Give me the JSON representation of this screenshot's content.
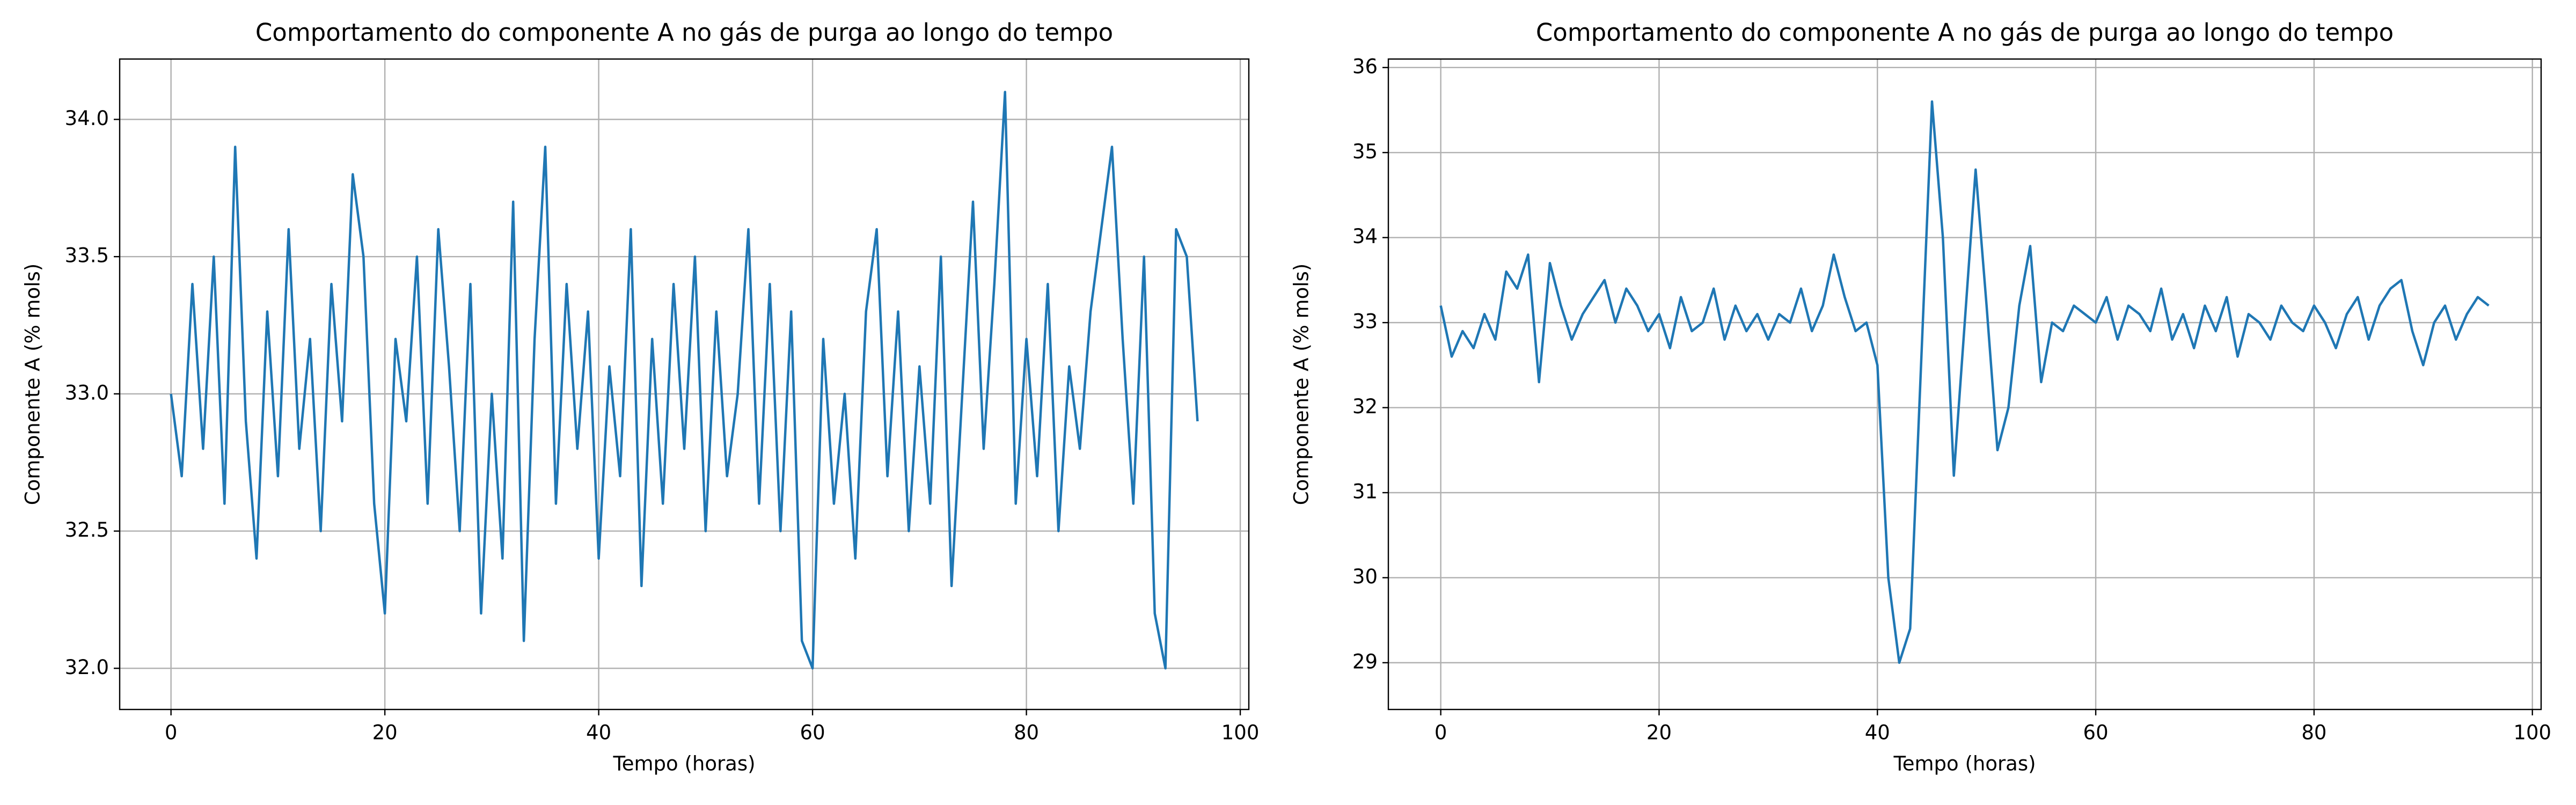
{
  "chart_data": [
    {
      "type": "line",
      "title": "Comportamento do componente A no gás de purga ao longo do tempo",
      "x_label": "Tempo (horas)",
      "y_label": "Componente A (% mols)",
      "color": "#1f77b4",
      "grid": true,
      "x": [
        0,
        1,
        2,
        3,
        4,
        5,
        6,
        7,
        8,
        9,
        10,
        11,
        12,
        13,
        14,
        15,
        16,
        17,
        18,
        19,
        20,
        21,
        22,
        23,
        24,
        25,
        26,
        27,
        28,
        29,
        30,
        31,
        32,
        33,
        34,
        35,
        36,
        37,
        38,
        39,
        40,
        41,
        42,
        43,
        44,
        45,
        46,
        47,
        48,
        49,
        50,
        51,
        52,
        53,
        54,
        55,
        56,
        57,
        58,
        59,
        60,
        61,
        62,
        63,
        64,
        65,
        66,
        67,
        68,
        69,
        70,
        71,
        72,
        73,
        74,
        75,
        76,
        77,
        78,
        79,
        80,
        81,
        82,
        83,
        84,
        85,
        86,
        87,
        88,
        89,
        90,
        91,
        92,
        93,
        94,
        95,
        96
      ],
      "values": [
        33.0,
        32.7,
        33.4,
        32.8,
        33.5,
        32.6,
        33.9,
        32.9,
        32.4,
        33.3,
        32.7,
        33.6,
        32.8,
        33.2,
        32.5,
        33.4,
        32.9,
        33.8,
        33.5,
        32.6,
        32.2,
        33.2,
        32.9,
        33.5,
        32.6,
        33.6,
        33.1,
        32.5,
        33.4,
        32.2,
        33.0,
        32.4,
        33.7,
        32.1,
        33.2,
        33.9,
        32.6,
        33.4,
        32.8,
        33.3,
        32.4,
        33.1,
        32.7,
        33.6,
        32.3,
        33.2,
        32.6,
        33.4,
        32.8,
        33.5,
        32.5,
        33.3,
        32.7,
        33.0,
        33.6,
        32.6,
        33.4,
        32.5,
        33.3,
        32.1,
        32.0,
        33.2,
        32.6,
        33.0,
        32.4,
        33.3,
        33.6,
        32.7,
        33.3,
        32.5,
        33.1,
        32.6,
        33.5,
        32.3,
        33.0,
        33.7,
        32.8,
        33.4,
        34.1,
        32.6,
        33.2,
        32.7,
        33.4,
        32.5,
        33.1,
        32.8,
        33.3,
        33.6,
        33.9,
        33.2,
        32.6,
        33.5,
        32.2,
        32.0,
        33.6,
        33.5,
        32.9
      ],
      "xlim": [
        -4.8,
        100.8
      ],
      "xticks": [
        0,
        20,
        40,
        60,
        80,
        100
      ],
      "ylim": [
        31.85,
        34.22
      ],
      "yticks": [
        {
          "value": 32,
          "label": "32.0"
        },
        32.5,
        {
          "value": 33,
          "label": "33.0"
        },
        33.5,
        {
          "value": 34,
          "label": "34.0"
        }
      ]
    },
    {
      "type": "line",
      "title": "Comportamento do componente A no gás de purga ao longo do tempo",
      "x_label": "Tempo (horas)",
      "y_label": "Componente A (% mols)",
      "color": "#1f77b4",
      "grid": true,
      "x": [
        0,
        1,
        2,
        3,
        4,
        5,
        6,
        7,
        8,
        9,
        10,
        11,
        12,
        13,
        14,
        15,
        16,
        17,
        18,
        19,
        20,
        21,
        22,
        23,
        24,
        25,
        26,
        27,
        28,
        29,
        30,
        31,
        32,
        33,
        34,
        35,
        36,
        37,
        38,
        39,
        40,
        41,
        42,
        43,
        44,
        45,
        46,
        47,
        48,
        49,
        50,
        51,
        52,
        53,
        54,
        55,
        56,
        57,
        58,
        59,
        60,
        61,
        62,
        63,
        64,
        65,
        66,
        67,
        68,
        69,
        70,
        71,
        72,
        73,
        74,
        75,
        76,
        77,
        78,
        79,
        80,
        81,
        82,
        83,
        84,
        85,
        86,
        87,
        88,
        89,
        90,
        91,
        92,
        93,
        94,
        95,
        96
      ],
      "values": [
        33.2,
        32.6,
        32.9,
        32.7,
        33.1,
        32.8,
        33.6,
        33.4,
        33.8,
        32.3,
        33.7,
        33.2,
        32.8,
        33.1,
        33.3,
        33.5,
        33.0,
        33.4,
        33.2,
        32.9,
        33.1,
        32.7,
        33.3,
        32.9,
        33.0,
        33.4,
        32.8,
        33.2,
        32.9,
        33.1,
        32.8,
        33.1,
        33.0,
        33.4,
        32.9,
        33.2,
        33.8,
        33.3,
        32.9,
        33.0,
        32.5,
        30.0,
        29.0,
        29.4,
        32.5,
        35.6,
        34.0,
        31.2,
        33.0,
        34.8,
        33.2,
        31.5,
        32.0,
        33.2,
        33.9,
        32.3,
        33.0,
        32.9,
        33.2,
        33.1,
        33.0,
        33.3,
        32.8,
        33.2,
        33.1,
        32.9,
        33.4,
        32.8,
        33.1,
        32.7,
        33.2,
        32.9,
        33.3,
        32.6,
        33.1,
        33.0,
        32.8,
        33.2,
        33.0,
        32.9,
        33.2,
        33.0,
        32.7,
        33.1,
        33.3,
        32.8,
        33.2,
        33.4,
        33.5,
        32.9,
        32.5,
        33.0,
        33.2,
        32.8,
        33.1,
        33.3,
        33.2
      ],
      "xlim": [
        -4.8,
        100.8
      ],
      "xticks": [
        0,
        20,
        40,
        60,
        80,
        100
      ],
      "ylim": [
        28.45,
        36.1
      ],
      "yticks": [
        29,
        30,
        31,
        32,
        33,
        34,
        35,
        36
      ]
    }
  ]
}
